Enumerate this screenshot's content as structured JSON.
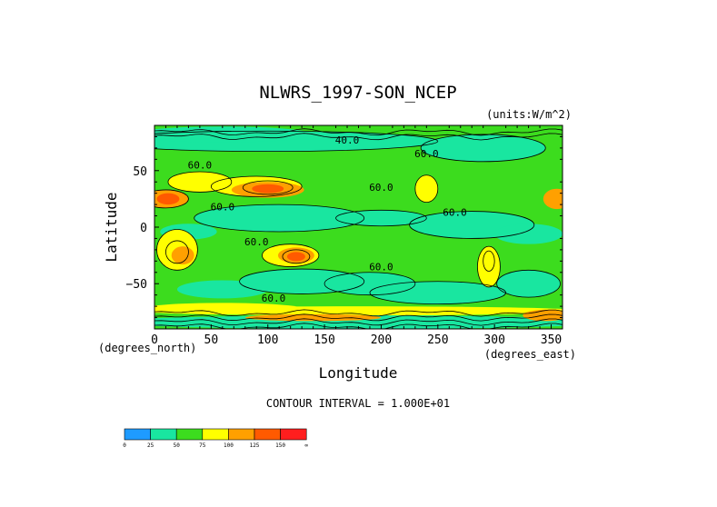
{
  "chart_data": {
    "type": "heatmap",
    "title": "NLWRS_1997-SON_NCEP",
    "units": "(units:W/m^2)",
    "xlabel": "Longitude",
    "ylabel": "Latitude",
    "x_unit_note": "(degrees_east)",
    "y_unit_note": "(degrees_north)",
    "xlim": [
      0,
      360
    ],
    "ylim": [
      -90,
      90
    ],
    "x_ticks": [
      0,
      50,
      100,
      150,
      200,
      250,
      300,
      350
    ],
    "y_ticks": [
      -50,
      0,
      50
    ],
    "contour_interval_text": "CONTOUR INTERVAL = 1.000E+01",
    "contour_labels": [
      {
        "text": "60.0",
        "lon": 40,
        "lat": 52
      },
      {
        "text": "40.0",
        "lon": 170,
        "lat": 74
      },
      {
        "text": "60.0",
        "lon": 200,
        "lat": 32
      },
      {
        "text": "60.0",
        "lon": 240,
        "lat": 62
      },
      {
        "text": "60.0",
        "lon": 60,
        "lat": 15
      },
      {
        "text": "60.0",
        "lon": 265,
        "lat": 10
      },
      {
        "text": "60.0",
        "lon": 90,
        "lat": -16
      },
      {
        "text": "60.0",
        "lon": 200,
        "lat": -38
      },
      {
        "text": "60.0",
        "lon": 105,
        "lat": -66
      }
    ],
    "colorbar": {
      "labels": [
        "0",
        "25",
        "50",
        "75",
        "100",
        "125",
        "150",
        "∞"
      ],
      "colors": [
        "#1e9bff",
        "#19e6a0",
        "#3cdc1e",
        "#ffff00",
        "#ffa000",
        "#ff5a00",
        "#ff1e1e"
      ]
    },
    "grid": false
  }
}
